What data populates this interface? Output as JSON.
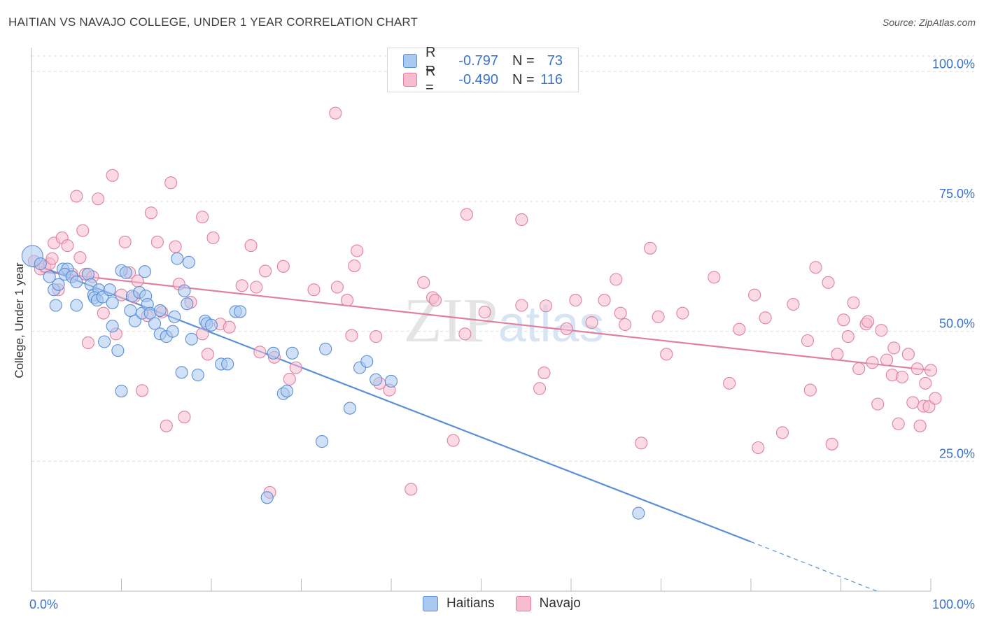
{
  "header": {
    "title": "HAITIAN VS NAVAJO COLLEGE, UNDER 1 YEAR CORRELATION CHART",
    "source": "Source: ZipAtlas.com"
  },
  "legend": {
    "rows": [
      {
        "r_label": "R =",
        "r_value": "-0.797",
        "n_label": "N =",
        "n_value": "73",
        "color": "#aac9f0",
        "border": "#5b8fd6"
      },
      {
        "r_label": "R =",
        "r_value": "-0.490",
        "n_label": "N =",
        "n_value": "116",
        "color": "#f7bcd0",
        "border": "#e080a0"
      }
    ]
  },
  "bottom_legend": {
    "haitians": "Haitians",
    "navajo": "Navajo"
  },
  "chart_data": {
    "type": "scatter",
    "xlabel": "",
    "ylabel": "College, Under 1 year",
    "x_tick_labels": [
      "0.0%",
      "100.0%"
    ],
    "y_tick_labels": [
      "100.0%",
      "75.0%",
      "50.0%",
      "25.0%"
    ],
    "y_ticks": [
      100,
      75,
      50,
      25
    ],
    "xlim": [
      0,
      100
    ],
    "ylim": [
      0,
      103
    ],
    "grid": true,
    "watermark": "ZIPatlas",
    "series": [
      {
        "name": "Haitians",
        "color": "#5b8fd6",
        "fill": "#aac9f0",
        "trend": {
          "x0": 1,
          "y0": 62.5,
          "x1": 80,
          "y1": 9.5,
          "dash_to_x": 94,
          "dash_to_y": 0
        },
        "points": [
          [
            0.1,
            64.5
          ],
          [
            1,
            63
          ],
          [
            2,
            60.5
          ],
          [
            2.5,
            58
          ],
          [
            3,
            59
          ],
          [
            3.5,
            62
          ],
          [
            4,
            62
          ],
          [
            3.7,
            61
          ],
          [
            4.5,
            60.5
          ],
          [
            5,
            59.5
          ],
          [
            2.7,
            55
          ],
          [
            5,
            55
          ],
          [
            6.3,
            61
          ],
          [
            6.6,
            59
          ],
          [
            6.9,
            57
          ],
          [
            7.5,
            58
          ],
          [
            7,
            56.5
          ],
          [
            7.3,
            56
          ],
          [
            7.9,
            56.6
          ],
          [
            8.7,
            58
          ],
          [
            9,
            55.5
          ],
          [
            10,
            61.7
          ],
          [
            10.5,
            61.3
          ],
          [
            8.1,
            48
          ],
          [
            9,
            51
          ],
          [
            9.6,
            46.3
          ],
          [
            10,
            38.5
          ],
          [
            11,
            54
          ],
          [
            11.2,
            56.8
          ],
          [
            11.5,
            52
          ],
          [
            12,
            57.5
          ],
          [
            12.3,
            53.5
          ],
          [
            12.6,
            61.5
          ],
          [
            12.7,
            56.8
          ],
          [
            12.9,
            55.2
          ],
          [
            13.2,
            53.5
          ],
          [
            13.7,
            51.5
          ],
          [
            14.3,
            54
          ],
          [
            14.3,
            49.5
          ],
          [
            15,
            49
          ],
          [
            15.7,
            50
          ],
          [
            15.9,
            52.8
          ],
          [
            16.2,
            64
          ],
          [
            16.7,
            42.1
          ],
          [
            17,
            57.8
          ],
          [
            17.3,
            55.3
          ],
          [
            17.5,
            63.3
          ],
          [
            17.8,
            48.5
          ],
          [
            18.5,
            41.6
          ],
          [
            19.3,
            52
          ],
          [
            19.5,
            51.5
          ],
          [
            20,
            51.2
          ],
          [
            21.1,
            43.7
          ],
          [
            21.8,
            43.7
          ],
          [
            22.7,
            53.8
          ],
          [
            23.2,
            53.8
          ],
          [
            26.2,
            18
          ],
          [
            26.9,
            45.8
          ],
          [
            28,
            38
          ],
          [
            28.4,
            38.5
          ],
          [
            29,
            45.8
          ],
          [
            32.3,
            28.8
          ],
          [
            32.7,
            46.6
          ],
          [
            35.4,
            35.2
          ],
          [
            36.5,
            43
          ],
          [
            37.3,
            44.2
          ],
          [
            38.3,
            40.7
          ],
          [
            40,
            40.4
          ],
          [
            67.5,
            15
          ]
        ]
      },
      {
        "name": "Navajo",
        "color": "#e080a0",
        "fill": "#f7bcd0",
        "trend": {
          "x0": 1,
          "y0": 61.5,
          "x1": 100,
          "y1": 42.5
        },
        "points": [
          [
            0.3,
            63.5
          ],
          [
            1,
            62
          ],
          [
            1.5,
            62.5
          ],
          [
            2,
            63
          ],
          [
            2.3,
            64
          ],
          [
            2.5,
            67
          ],
          [
            3,
            58
          ],
          [
            3.4,
            68
          ],
          [
            4,
            66.5
          ],
          [
            4.5,
            61
          ],
          [
            5,
            76
          ],
          [
            5.4,
            64.2
          ],
          [
            5.7,
            69.4
          ],
          [
            6,
            61
          ],
          [
            6.3,
            47.8
          ],
          [
            6.8,
            60.5
          ],
          [
            7.4,
            75.5
          ],
          [
            8,
            53.5
          ],
          [
            9,
            80
          ],
          [
            9.4,
            49.5
          ],
          [
            10,
            57
          ],
          [
            10.4,
            67.2
          ],
          [
            10.9,
            61.3
          ],
          [
            11.4,
            56.6
          ],
          [
            11.8,
            59.7
          ],
          [
            12.3,
            38.6
          ],
          [
            12.9,
            53
          ],
          [
            13.3,
            72.8
          ],
          [
            14,
            67.2
          ],
          [
            14.5,
            53.7
          ],
          [
            15,
            31.8
          ],
          [
            15.5,
            78.6
          ],
          [
            16,
            66.3
          ],
          [
            16.4,
            59.1
          ],
          [
            17,
            33.5
          ],
          [
            17.7,
            55.6
          ],
          [
            19,
            72
          ],
          [
            19,
            49.5
          ],
          [
            19.6,
            45.6
          ],
          [
            20.2,
            68
          ],
          [
            21,
            51.4
          ],
          [
            22,
            50.8
          ],
          [
            23.4,
            58.8
          ],
          [
            24.4,
            66.5
          ],
          [
            25,
            58.5
          ],
          [
            25.4,
            46
          ],
          [
            26,
            61.6
          ],
          [
            26.5,
            19
          ],
          [
            27,
            45
          ],
          [
            28,
            62.5
          ],
          [
            28.7,
            40.8
          ],
          [
            29.4,
            43
          ],
          [
            31.4,
            58
          ],
          [
            33.8,
            92
          ],
          [
            34,
            58.5
          ],
          [
            35.1,
            56
          ],
          [
            35.6,
            49.2
          ],
          [
            35.9,
            62.6
          ],
          [
            36.2,
            65.5
          ],
          [
            38.3,
            49
          ],
          [
            38.7,
            40
          ],
          [
            39.8,
            38.7
          ],
          [
            42.2,
            19.6
          ],
          [
            43.6,
            59.4
          ],
          [
            44.6,
            56.5
          ],
          [
            44.9,
            56
          ],
          [
            46.9,
            29
          ],
          [
            48.2,
            49.5
          ],
          [
            48.4,
            72.5
          ],
          [
            50.4,
            53.7
          ],
          [
            54.5,
            71.5
          ],
          [
            54.5,
            55
          ],
          [
            56.5,
            39
          ],
          [
            57,
            42
          ],
          [
            57.2,
            54.9
          ],
          [
            59.5,
            50.5
          ],
          [
            60.5,
            56
          ],
          [
            62.3,
            51.7
          ],
          [
            63.7,
            56
          ],
          [
            65,
            60
          ],
          [
            65.5,
            53.5
          ],
          [
            66,
            51.3
          ],
          [
            67.8,
            28.5
          ],
          [
            68.8,
            66
          ],
          [
            69.7,
            52.8
          ],
          [
            70.6,
            45.6
          ],
          [
            72.4,
            53.5
          ],
          [
            75.9,
            60.4
          ],
          [
            77.6,
            40
          ],
          [
            78.7,
            50.4
          ],
          [
            80.4,
            57
          ],
          [
            80.8,
            27.6
          ],
          [
            81.6,
            52.6
          ],
          [
            83.5,
            30.5
          ],
          [
            84.7,
            55.2
          ],
          [
            86.3,
            48.2
          ],
          [
            86.6,
            38.7
          ],
          [
            87.2,
            62.3
          ],
          [
            88.6,
            59.4
          ],
          [
            89,
            28.3
          ],
          [
            89.6,
            45.6
          ],
          [
            90.3,
            52.2
          ],
          [
            90.8,
            49
          ],
          [
            91.4,
            55.5
          ],
          [
            92,
            42.8
          ],
          [
            92.8,
            51.4
          ],
          [
            93,
            51.9
          ],
          [
            93.5,
            44
          ],
          [
            94.1,
            36
          ],
          [
            94.5,
            50.2
          ],
          [
            95.1,
            44.5
          ],
          [
            95.7,
            41.6
          ],
          [
            95.9,
            46.8
          ],
          [
            96.4,
            32.2
          ],
          [
            96.8,
            41.2
          ],
          [
            97.5,
            45.6
          ],
          [
            98,
            36.3
          ],
          [
            98.5,
            42.8
          ],
          [
            98.8,
            31.8
          ],
          [
            99.2,
            35.6
          ],
          [
            99.4,
            40
          ],
          [
            100,
            42.5
          ],
          [
            99.8,
            35.5
          ],
          [
            100.5,
            37.1
          ]
        ]
      }
    ]
  }
}
